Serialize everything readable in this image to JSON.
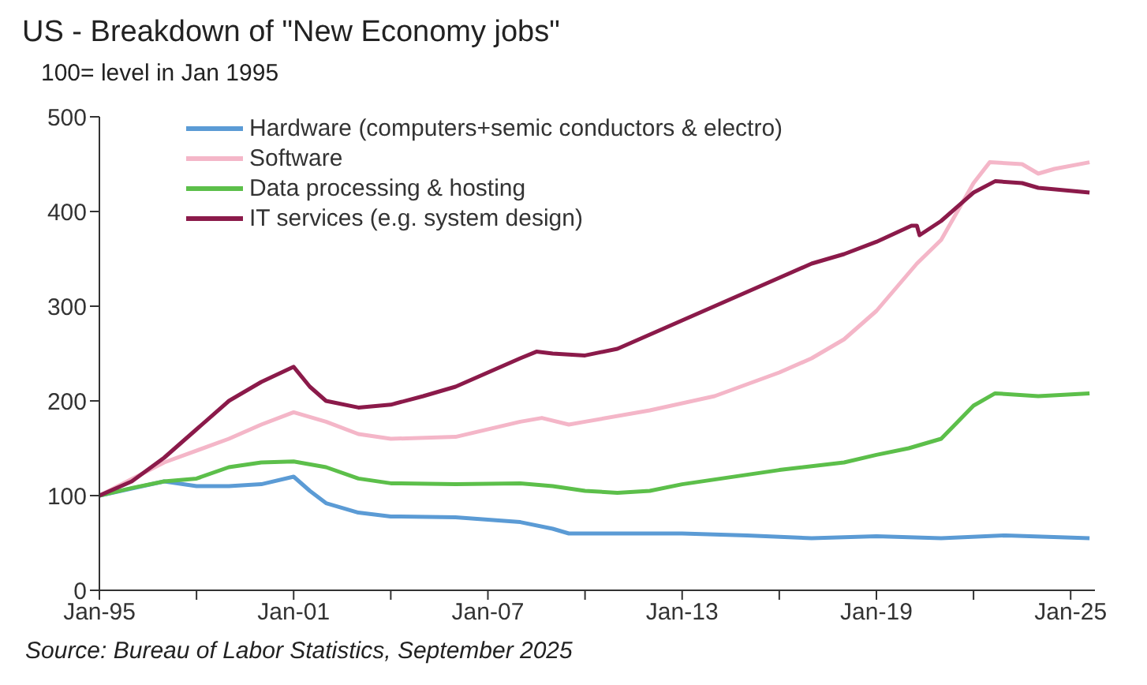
{
  "chart_data": {
    "type": "line",
    "title": "US - Breakdown of \"New Economy jobs\"",
    "ylabel": "100= level in Jan 1995",
    "annotations": [
      "Source: Bureau of Labor Statistics, September 2025"
    ],
    "xlim": [
      "1995-01",
      "2025-10"
    ],
    "xticks": [
      {
        "value": "1995-01",
        "label": "Jan-95"
      },
      {
        "value": "1998-01",
        "label": null
      },
      {
        "value": "2001-01",
        "label": "Jan-01"
      },
      {
        "value": "2004-01",
        "label": null
      },
      {
        "value": "2007-01",
        "label": "Jan-07"
      },
      {
        "value": "2010-01",
        "label": null
      },
      {
        "value": "2013-01",
        "label": "Jan-13"
      },
      {
        "value": "2016-01",
        "label": null
      },
      {
        "value": "2019-01",
        "label": "Jan-19"
      },
      {
        "value": "2022-01",
        "label": null
      },
      {
        "value": "2025-01",
        "label": "Jan-25"
      }
    ],
    "ylim": [
      0,
      500
    ],
    "yticks": [
      0,
      100,
      200,
      300,
      400,
      500
    ],
    "grid": false,
    "legend": "top left",
    "marker": "none",
    "line_style": "solid",
    "series": [
      {
        "name": "Hardware (computers+semic conductors & electro)",
        "color": "#5b9bd5",
        "x": [
          "1995-01",
          "1997-01",
          "1998-01",
          "1999-01",
          "2000-01",
          "2001-01",
          "2001-07",
          "2002-01",
          "2003-01",
          "2004-01",
          "2006-01",
          "2008-01",
          "2009-01",
          "2009-07",
          "2011-01",
          "2013-01",
          "2015-01",
          "2017-01",
          "2019-01",
          "2021-01",
          "2023-01",
          "2025-08"
        ],
        "values": [
          100,
          115,
          110,
          110,
          112,
          120,
          105,
          92,
          82,
          78,
          77,
          72,
          65,
          60,
          60,
          60,
          58,
          55,
          57,
          55,
          58,
          55
        ]
      },
      {
        "name": "Software",
        "color": "#f4b6c8",
        "x": [
          "1995-01",
          "1997-01",
          "1999-01",
          "2000-01",
          "2001-01",
          "2002-01",
          "2003-01",
          "2004-01",
          "2006-01",
          "2008-01",
          "2008-09",
          "2009-07",
          "2010-01",
          "2012-01",
          "2014-01",
          "2016-01",
          "2017-01",
          "2018-01",
          "2019-01",
          "2020-01",
          "2020-04",
          "2021-01",
          "2022-01",
          "2022-07",
          "2023-07",
          "2024-01",
          "2024-07",
          "2025-08"
        ],
        "values": [
          100,
          135,
          160,
          175,
          188,
          178,
          165,
          160,
          162,
          178,
          182,
          175,
          178,
          190,
          205,
          230,
          245,
          265,
          295,
          335,
          345,
          370,
          430,
          452,
          450,
          440,
          445,
          452
        ]
      },
      {
        "name": "Data processing & hosting",
        "color": "#5cbf4a",
        "x": [
          "1995-01",
          "1996-01",
          "1997-01",
          "1998-01",
          "1999-01",
          "2000-01",
          "2001-01",
          "2002-01",
          "2003-01",
          "2004-01",
          "2006-01",
          "2008-01",
          "2009-01",
          "2010-01",
          "2011-01",
          "2012-01",
          "2013-01",
          "2014-01",
          "2016-01",
          "2018-01",
          "2019-01",
          "2020-01",
          "2021-01",
          "2022-01",
          "2022-09",
          "2024-01",
          "2025-08"
        ],
        "values": [
          100,
          108,
          115,
          118,
          130,
          135,
          136,
          130,
          118,
          113,
          112,
          113,
          110,
          105,
          103,
          105,
          112,
          117,
          127,
          135,
          143,
          150,
          160,
          195,
          208,
          205,
          208
        ]
      },
      {
        "name": "IT services (e.g. system design)",
        "color": "#8b1a4a",
        "x": [
          "1995-01",
          "1996-01",
          "1997-01",
          "1998-01",
          "1999-01",
          "2000-01",
          "2001-01",
          "2001-07",
          "2002-01",
          "2003-01",
          "2004-01",
          "2005-01",
          "2006-01",
          "2007-01",
          "2008-01",
          "2008-07",
          "2009-01",
          "2010-01",
          "2011-01",
          "2012-01",
          "2013-01",
          "2014-01",
          "2015-01",
          "2016-01",
          "2017-01",
          "2018-01",
          "2019-01",
          "2020-02",
          "2020-04",
          "2020-05",
          "2021-01",
          "2022-01",
          "2022-09",
          "2023-07",
          "2024-01",
          "2025-08"
        ],
        "values": [
          100,
          115,
          140,
          170,
          200,
          220,
          236,
          215,
          200,
          193,
          196,
          205,
          215,
          230,
          245,
          252,
          250,
          248,
          255,
          270,
          285,
          300,
          315,
          330,
          345,
          355,
          368,
          385,
          385,
          375,
          390,
          420,
          432,
          430,
          425,
          420
        ]
      }
    ]
  }
}
